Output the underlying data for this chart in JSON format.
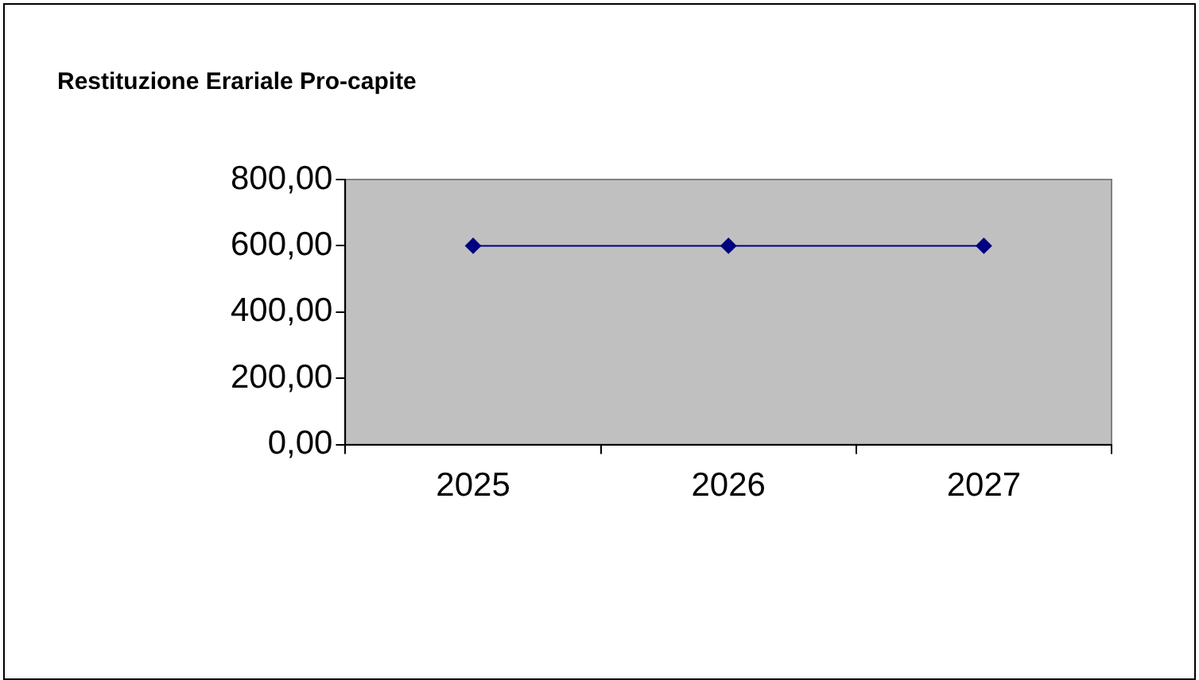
{
  "chart_data": {
    "type": "line",
    "title": "Restituzione Erariale Pro-capite",
    "categories": [
      "2025",
      "2026",
      "2027"
    ],
    "series": [
      {
        "color": "#000080",
        "values": [
          600,
          600,
          600
        ]
      }
    ],
    "ylim": [
      0,
      800
    ],
    "yticks": [
      {
        "value": 0,
        "label": "0,00"
      },
      {
        "value": 200,
        "label": "200,00"
      },
      {
        "value": 400,
        "label": "400,00"
      },
      {
        "value": 600,
        "label": "600,00"
      },
      {
        "value": 800,
        "label": "800,00"
      }
    ],
    "grid": false,
    "legend": false,
    "marker": "diamond",
    "line_style": "solid"
  }
}
